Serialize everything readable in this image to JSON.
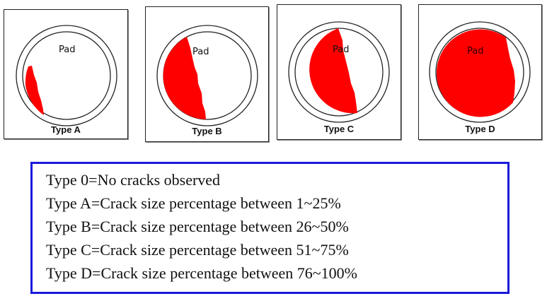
{
  "panels": [
    {
      "type_label": "Type A",
      "pad_label": "Pad",
      "crack_range": "1~25%"
    },
    {
      "type_label": "Type B",
      "pad_label": "Pad",
      "crack_range": "26~50%"
    },
    {
      "type_label": "Type C",
      "pad_label": "Pad",
      "crack_range": "51~75%"
    },
    {
      "type_label": "Type D",
      "pad_label": "Pad",
      "crack_range": "76~100%"
    }
  ],
  "legend": {
    "lines": [
      "Type 0=No cracks observed",
      "Type A=Crack size percentage between 1~25%",
      "Type B=Crack size percentage between 26~50%",
      "Type C=Crack size percentage between 51~75%",
      "Type D=Crack size percentage between 76~100%"
    ]
  },
  "colors": {
    "crack_fill": "#ff0000",
    "legend_border": "#1a1adb",
    "outline": "#222222"
  }
}
